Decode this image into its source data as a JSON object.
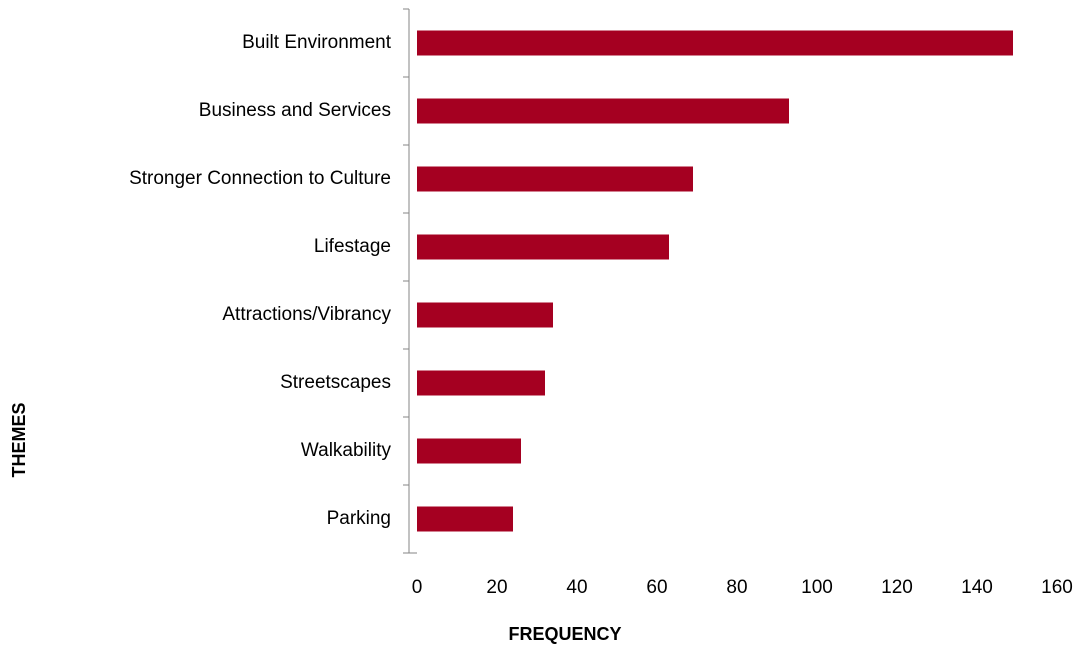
{
  "chart_data": {
    "type": "barh",
    "xlabel": "FREQUENCY",
    "ylabel": "THEMES",
    "categories": [
      "Built Environment",
      "Business and Services",
      "Stronger Connection to Culture",
      "Lifestage",
      "Attractions/Vibrancy",
      "Streetscapes",
      "Walkability",
      "Parking"
    ],
    "values": [
      149,
      93,
      69,
      63,
      34,
      32,
      26,
      24
    ],
    "color": "#a50021",
    "xlim": [
      0,
      160
    ],
    "xticks": [
      0,
      20,
      40,
      60,
      80,
      100,
      120,
      140,
      160
    ],
    "grid": false
  }
}
